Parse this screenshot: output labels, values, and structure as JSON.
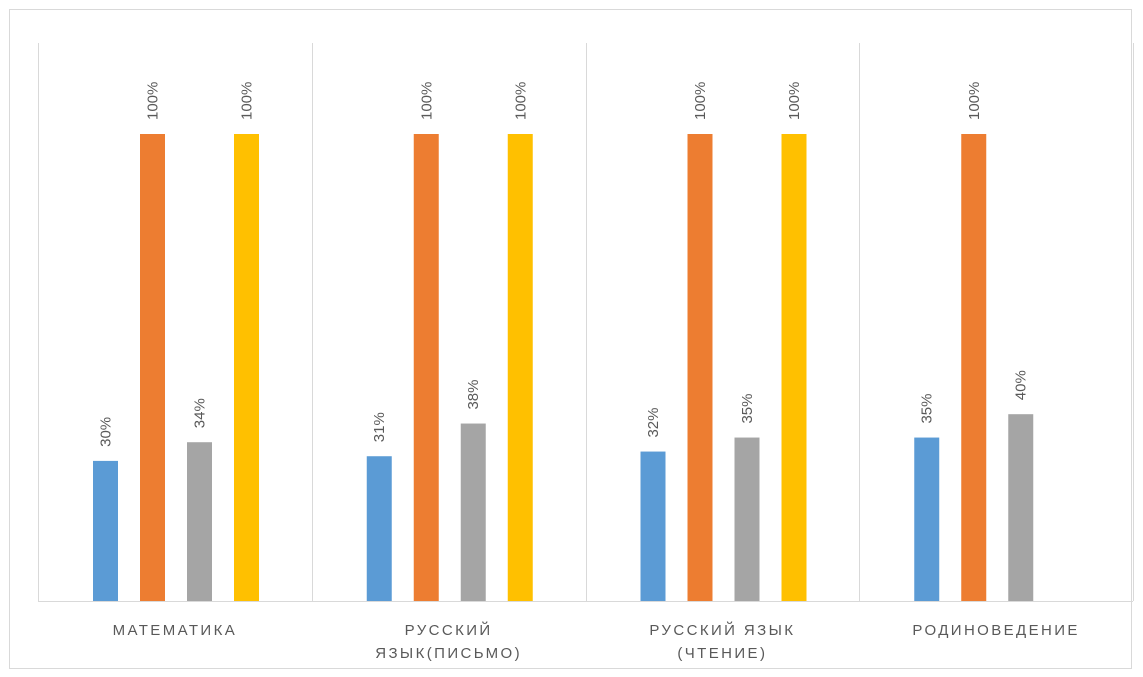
{
  "chart_data": {
    "type": "bar",
    "categories": [
      "МАТЕМАТИКА",
      "РУССКИЙ\nЯЗЫК(ПИСЬМО)",
      "РУССКИЙ ЯЗЫК\n(ЧТЕНИЕ)",
      "РОДИНОВЕДЕНИЕ"
    ],
    "series": [
      {
        "values": [
          30,
          31,
          32,
          35
        ],
        "labels": [
          "30%",
          "31%",
          "32%",
          "35%"
        ],
        "color": "#5b9bd5"
      },
      {
        "values": [
          100,
          100,
          100,
          100
        ],
        "labels": [
          "100%",
          "100%",
          "100%",
          "100%"
        ],
        "color": "#ed7d31"
      },
      {
        "values": [
          34,
          38,
          35,
          40
        ],
        "labels": [
          "34%",
          "38%",
          "35%",
          "40%"
        ],
        "color": "#a5a5a5"
      },
      {
        "values": [
          100,
          100,
          100,
          null
        ],
        "labels": [
          "100%",
          "100%",
          "100%",
          ""
        ],
        "color": "#ffc000"
      }
    ],
    "ylim": [
      0,
      100
    ],
    "grid": false,
    "legend": "none",
    "data_label_color": "#595959",
    "divider_color": "#d9d9d9",
    "axis_color": "#d9d9d9"
  }
}
